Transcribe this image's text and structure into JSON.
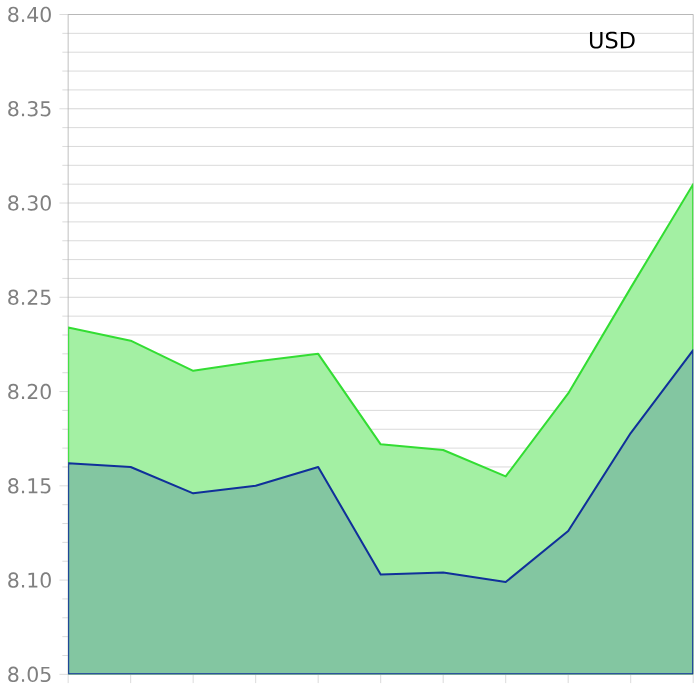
{
  "chart_data": {
    "type": "area",
    "categories": [
      null,
      null,
      null,
      null,
      null,
      null,
      null,
      null,
      null,
      null,
      null
    ],
    "series": [
      {
        "color": "#33dd33",
        "values": [
          8.234,
          8.227,
          8.211,
          8.216,
          8.22,
          8.172,
          8.169,
          8.155,
          8.199,
          8.255,
          8.31
        ]
      },
      {
        "color": "#10309a",
        "values": [
          8.162,
          8.16,
          8.146,
          8.15,
          8.16,
          8.103,
          8.104,
          8.099,
          8.126,
          8.178,
          8.222
        ]
      }
    ],
    "ylim": [
      8.05,
      8.4
    ],
    "yticks": [
      {
        "value": 8.05,
        "label": "8.05"
      },
      {
        "value": 8.1,
        "label": "8.10"
      },
      {
        "value": 8.15,
        "label": "8.15"
      },
      {
        "value": 8.2,
        "label": "8.20"
      },
      {
        "value": 8.25,
        "label": "8.25"
      },
      {
        "value": 8.3,
        "label": "8.30"
      },
      {
        "value": 8.35,
        "label": "8.35"
      },
      {
        "value": 8.4,
        "label": "8.40"
      }
    ],
    "grid": "y",
    "annotations": [
      "USD"
    ]
  }
}
